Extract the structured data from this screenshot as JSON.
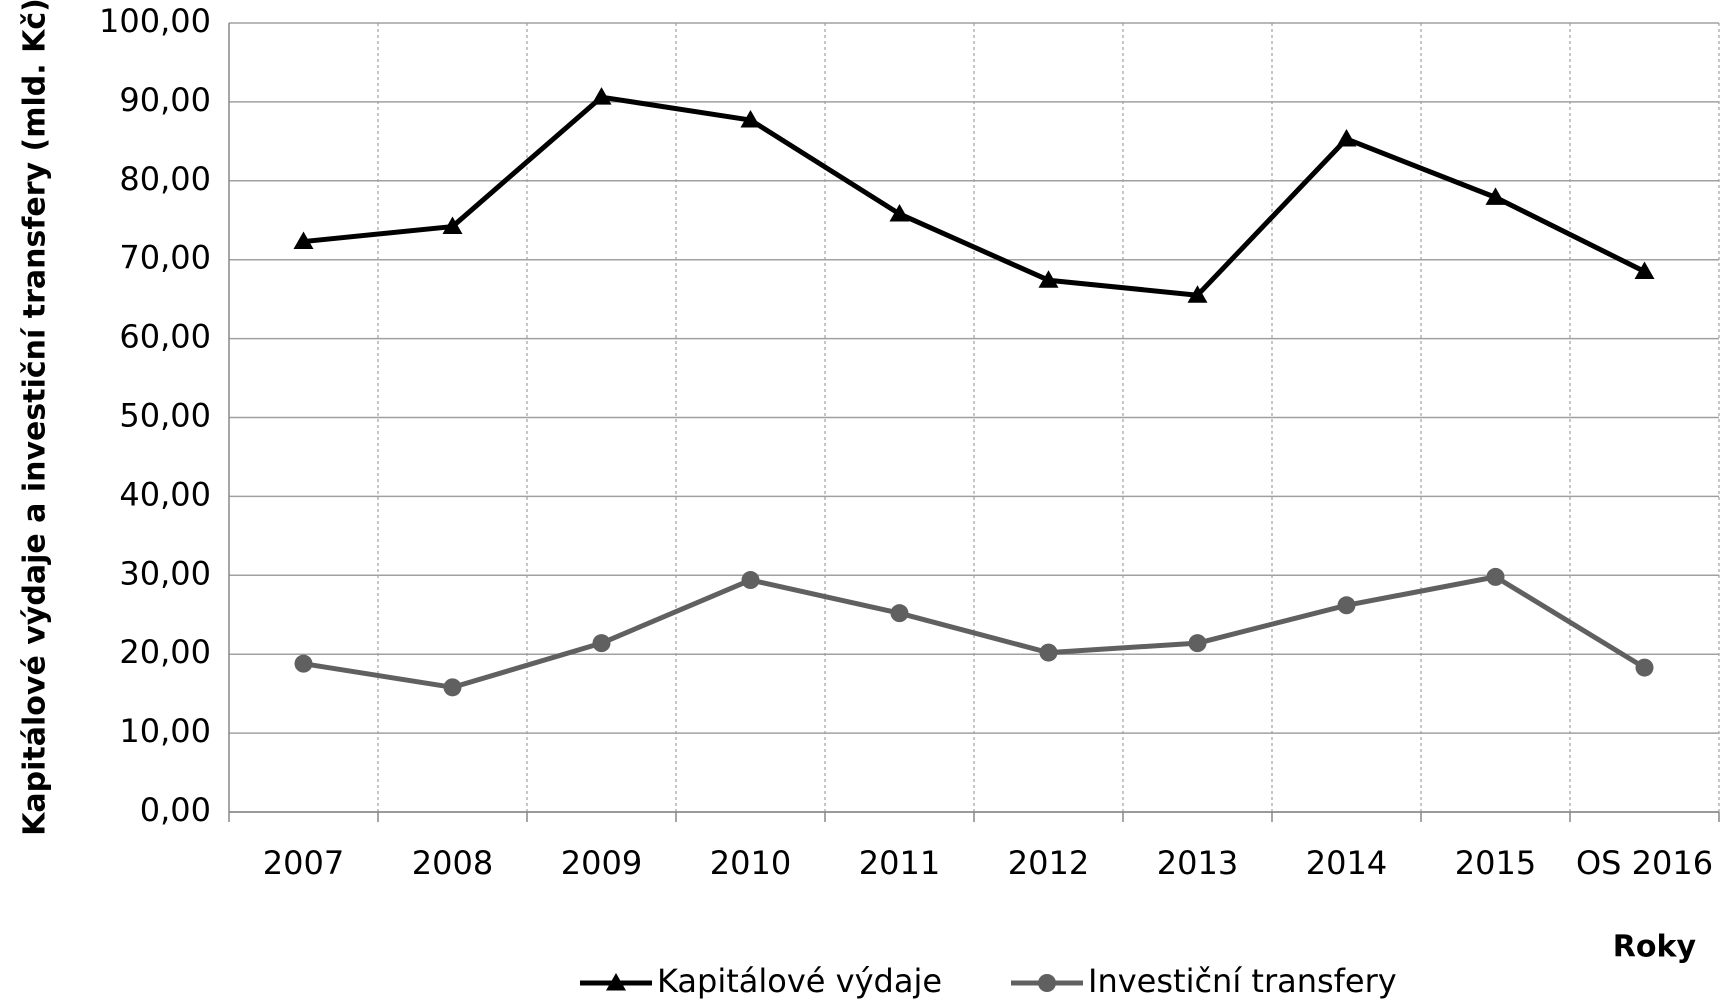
{
  "chart_data": {
    "type": "line",
    "y_label": "Kapitálové výdaje  a investiční transfery (mld. Kč)",
    "x_label": "Roky",
    "categories": [
      "2007",
      "2008",
      "2009",
      "2010",
      "2011",
      "2012",
      "2013",
      "2014",
      "2015",
      "OS 2016"
    ],
    "series": [
      {
        "name": "Kapitálové výdaje",
        "color": "#000000",
        "marker": "triangle",
        "values": [
          72.3,
          74.2,
          90.6,
          87.7,
          75.8,
          67.4,
          65.5,
          85.3,
          77.9,
          68.5
        ]
      },
      {
        "name": "Investiční transfery",
        "color": "#606060",
        "marker": "circle",
        "values": [
          18.8,
          15.8,
          21.4,
          29.4,
          25.2,
          20.2,
          21.4,
          26.2,
          29.8,
          18.3
        ]
      }
    ],
    "ylim": [
      0,
      100
    ],
    "yticks": [
      {
        "value": 0,
        "label": "0,00"
      },
      {
        "value": 10,
        "label": "10,00"
      },
      {
        "value": 20,
        "label": "20,00"
      },
      {
        "value": 30,
        "label": "30,00"
      },
      {
        "value": 40,
        "label": "40,00"
      },
      {
        "value": 50,
        "label": "50,00"
      },
      {
        "value": 60,
        "label": "60,00"
      },
      {
        "value": 70,
        "label": "70,00"
      },
      {
        "value": 80,
        "label": "80,00"
      },
      {
        "value": 90,
        "label": "90,00"
      },
      {
        "value": 100,
        "label": "100,00"
      }
    ],
    "grid": true
  }
}
